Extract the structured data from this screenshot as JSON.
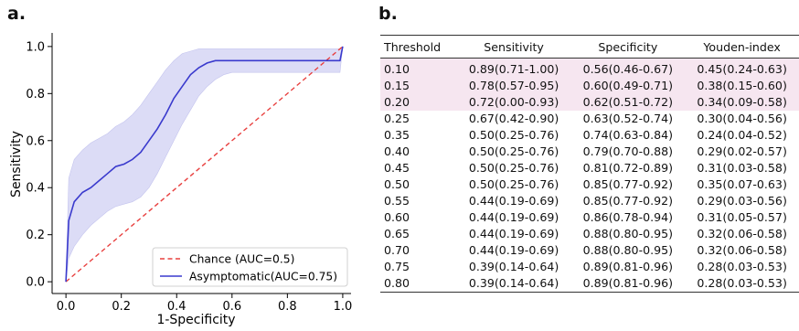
{
  "panel_a_label": "a.",
  "panel_b_label": "b.",
  "chart_data": {
    "type": "line",
    "xlabel": "1-Specificity",
    "ylabel": "Sensitivity",
    "xlim": [
      -0.05,
      1.03
    ],
    "ylim": [
      -0.05,
      1.05
    ],
    "xticks": [
      "0.0",
      "0.2",
      "0.4",
      "0.6",
      "0.8",
      "1.0"
    ],
    "yticks": [
      "0.0",
      "0.2",
      "0.4",
      "0.6",
      "0.8",
      "1.0"
    ],
    "grid": false,
    "legend_position": "bottom-right",
    "series": [
      {
        "name": "Chance (AUC=0.5)",
        "style": "dashed",
        "color": "#e8403f",
        "x": [
          0,
          1
        ],
        "y": [
          0,
          1
        ]
      },
      {
        "name": "Asymptomatic(AUC=0.75)",
        "style": "solid",
        "color": "#3a3acd",
        "band_color": "#dcdcf6",
        "x": [
          0,
          0.01,
          0.03,
          0.06,
          0.09,
          0.12,
          0.15,
          0.18,
          0.21,
          0.24,
          0.27,
          0.3,
          0.33,
          0.36,
          0.39,
          0.42,
          0.45,
          0.48,
          0.51,
          0.54,
          0.57,
          0.6,
          0.7,
          0.8,
          0.9,
          0.99,
          1.0
        ],
        "y": [
          0,
          0.26,
          0.34,
          0.38,
          0.4,
          0.43,
          0.46,
          0.49,
          0.5,
          0.52,
          0.55,
          0.6,
          0.65,
          0.71,
          0.78,
          0.83,
          0.88,
          0.91,
          0.93,
          0.94,
          0.94,
          0.94,
          0.94,
          0.94,
          0.94,
          0.94,
          1.0
        ],
        "lower": [
          0,
          0.1,
          0.15,
          0.2,
          0.24,
          0.27,
          0.3,
          0.32,
          0.33,
          0.34,
          0.36,
          0.4,
          0.46,
          0.53,
          0.6,
          0.67,
          0.73,
          0.79,
          0.83,
          0.86,
          0.88,
          0.89,
          0.89,
          0.89,
          0.89,
          0.89,
          1.0
        ],
        "upper": [
          0,
          0.44,
          0.52,
          0.56,
          0.59,
          0.61,
          0.63,
          0.66,
          0.68,
          0.71,
          0.75,
          0.8,
          0.85,
          0.9,
          0.94,
          0.97,
          0.98,
          0.99,
          0.99,
          0.99,
          0.99,
          0.99,
          0.99,
          0.99,
          0.99,
          0.99,
          1.0
        ]
      }
    ]
  },
  "table": {
    "headers": [
      "Threshold",
      "Sensitivity",
      "Specificity",
      "Youden-index"
    ],
    "rows": [
      [
        "0.10",
        "0.89(0.71-1.00)",
        "0.56(0.46-0.67)",
        "0.45(0.24-0.63)"
      ],
      [
        "0.15",
        "0.78(0.57-0.95)",
        "0.60(0.49-0.71)",
        "0.38(0.15-0.60)"
      ],
      [
        "0.20",
        "0.72(0.00-0.93)",
        "0.62(0.51-0.72)",
        "0.34(0.09-0.58)"
      ],
      [
        "0.25",
        "0.67(0.42-0.90)",
        "0.63(0.52-0.74)",
        "0.30(0.04-0.56)"
      ],
      [
        "0.35",
        "0.50(0.25-0.76)",
        "0.74(0.63-0.84)",
        "0.24(0.04-0.52)"
      ],
      [
        "0.40",
        "0.50(0.25-0.76)",
        "0.79(0.70-0.88)",
        "0.29(0.02-0.57)"
      ],
      [
        "0.45",
        "0.50(0.25-0.76)",
        "0.81(0.72-0.89)",
        "0.31(0.03-0.58)"
      ],
      [
        "0.50",
        "0.50(0.25-0.76)",
        "0.85(0.77-0.92)",
        "0.35(0.07-0.63)"
      ],
      [
        "0.55",
        "0.44(0.19-0.69)",
        "0.85(0.77-0.92)",
        "0.29(0.03-0.56)"
      ],
      [
        "0.60",
        "0.44(0.19-0.69)",
        "0.86(0.78-0.94)",
        "0.31(0.05-0.57)"
      ],
      [
        "0.65",
        "0.44(0.19-0.69)",
        "0.88(0.80-0.95)",
        "0.32(0.06-0.58)"
      ],
      [
        "0.70",
        "0.44(0.19-0.69)",
        "0.88(0.80-0.95)",
        "0.32(0.06-0.58)"
      ],
      [
        "0.75",
        "0.39(0.14-0.64)",
        "0.89(0.81-0.96)",
        "0.28(0.03-0.53)"
      ],
      [
        "0.80",
        "0.39(0.14-0.64)",
        "0.89(0.81-0.96)",
        "0.28(0.03-0.53)"
      ]
    ],
    "highlight_rows": [
      0,
      1,
      2
    ],
    "highlight_color": "#f6e6f0"
  }
}
